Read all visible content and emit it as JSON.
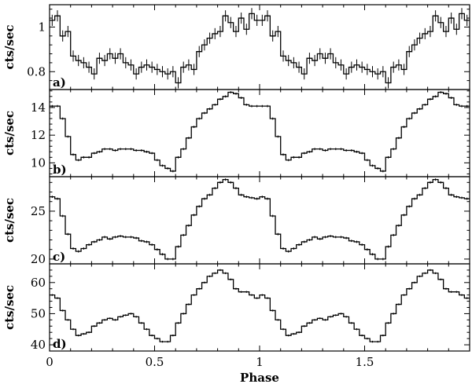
{
  "chart_data": {
    "type": "line",
    "style": "step-histogram with error bars",
    "xlabel": "Phase",
    "xlim": [
      0,
      2
    ],
    "xticks": [
      0,
      0.5,
      1,
      1.5
    ],
    "xtick_labels": [
      "0",
      "0.5",
      "1",
      "1.5"
    ],
    "bins_per_cycle": 40,
    "panels": [
      {
        "label": "a)",
        "ylabel": "cts/sec",
        "ylim": [
          0.72,
          1.1
        ],
        "yticks": [
          0.8,
          1
        ],
        "ytick_labels": [
          "0.8",
          "1"
        ],
        "error": 0.025,
        "values": [
          1.03,
          1.05,
          0.96,
          0.98,
          0.87,
          0.85,
          0.84,
          0.82,
          0.79,
          0.86,
          0.85,
          0.88,
          0.86,
          0.88,
          0.84,
          0.83,
          0.79,
          0.82,
          0.83,
          0.82,
          0.81,
          0.8,
          0.79,
          0.8,
          0.75,
          0.82,
          0.83,
          0.81,
          0.89,
          0.92,
          0.95,
          0.97,
          0.98,
          1.05,
          1.02,
          0.98,
          1.04,
          0.99,
          1.06,
          1.03
        ]
      },
      {
        "label": "b)",
        "ylabel": "cts/sec",
        "ylim": [
          9.0,
          15.3
        ],
        "yticks": [
          10,
          12,
          14
        ],
        "ytick_labels": [
          "10",
          "12",
          "14"
        ],
        "error": 0.08,
        "values": [
          14.1,
          14.1,
          13.2,
          11.9,
          10.6,
          10.2,
          10.4,
          10.4,
          10.7,
          10.8,
          11.0,
          11.0,
          10.9,
          11.0,
          11.0,
          11.0,
          10.9,
          10.9,
          10.8,
          10.7,
          10.2,
          9.8,
          9.6,
          9.4,
          10.4,
          11.0,
          11.8,
          12.6,
          13.2,
          13.6,
          13.9,
          14.2,
          14.6,
          14.8,
          15.1,
          15.0,
          14.7,
          14.2,
          14.1,
          14.1
        ]
      },
      {
        "label": "c)",
        "ylabel": "cts/sec",
        "ylim": [
          19.5,
          28.6
        ],
        "yticks": [
          20,
          25
        ],
        "ytick_labels": [
          "20",
          "25"
        ],
        "error": 0.12,
        "values": [
          26.5,
          26.3,
          24.5,
          22.6,
          21.1,
          20.8,
          21.1,
          21.5,
          21.8,
          22.0,
          22.3,
          22.1,
          22.3,
          22.4,
          22.3,
          22.3,
          22.2,
          21.9,
          21.8,
          21.5,
          21.0,
          20.5,
          20.0,
          20.0,
          21.3,
          22.5,
          23.5,
          24.6,
          25.5,
          26.3,
          26.7,
          27.4,
          28.0,
          28.3,
          28.0,
          27.4,
          26.7,
          26.5,
          26.4,
          26.3
        ]
      },
      {
        "label": "d)",
        "ylabel": "cts/sec",
        "ylim": [
          38,
          66
        ],
        "yticks": [
          40,
          50,
          60
        ],
        "ytick_labels": [
          "40",
          "50",
          "60"
        ],
        "error": 0.3,
        "values": [
          56,
          55,
          51,
          48,
          45,
          43,
          43.5,
          44,
          46,
          47,
          48,
          48.5,
          48,
          49,
          49.5,
          50,
          49,
          47,
          45,
          43,
          42,
          41,
          41,
          43,
          47,
          50,
          53,
          56,
          58,
          60,
          62,
          63,
          64,
          63,
          61,
          58,
          57,
          57,
          56,
          55
        ]
      }
    ]
  }
}
